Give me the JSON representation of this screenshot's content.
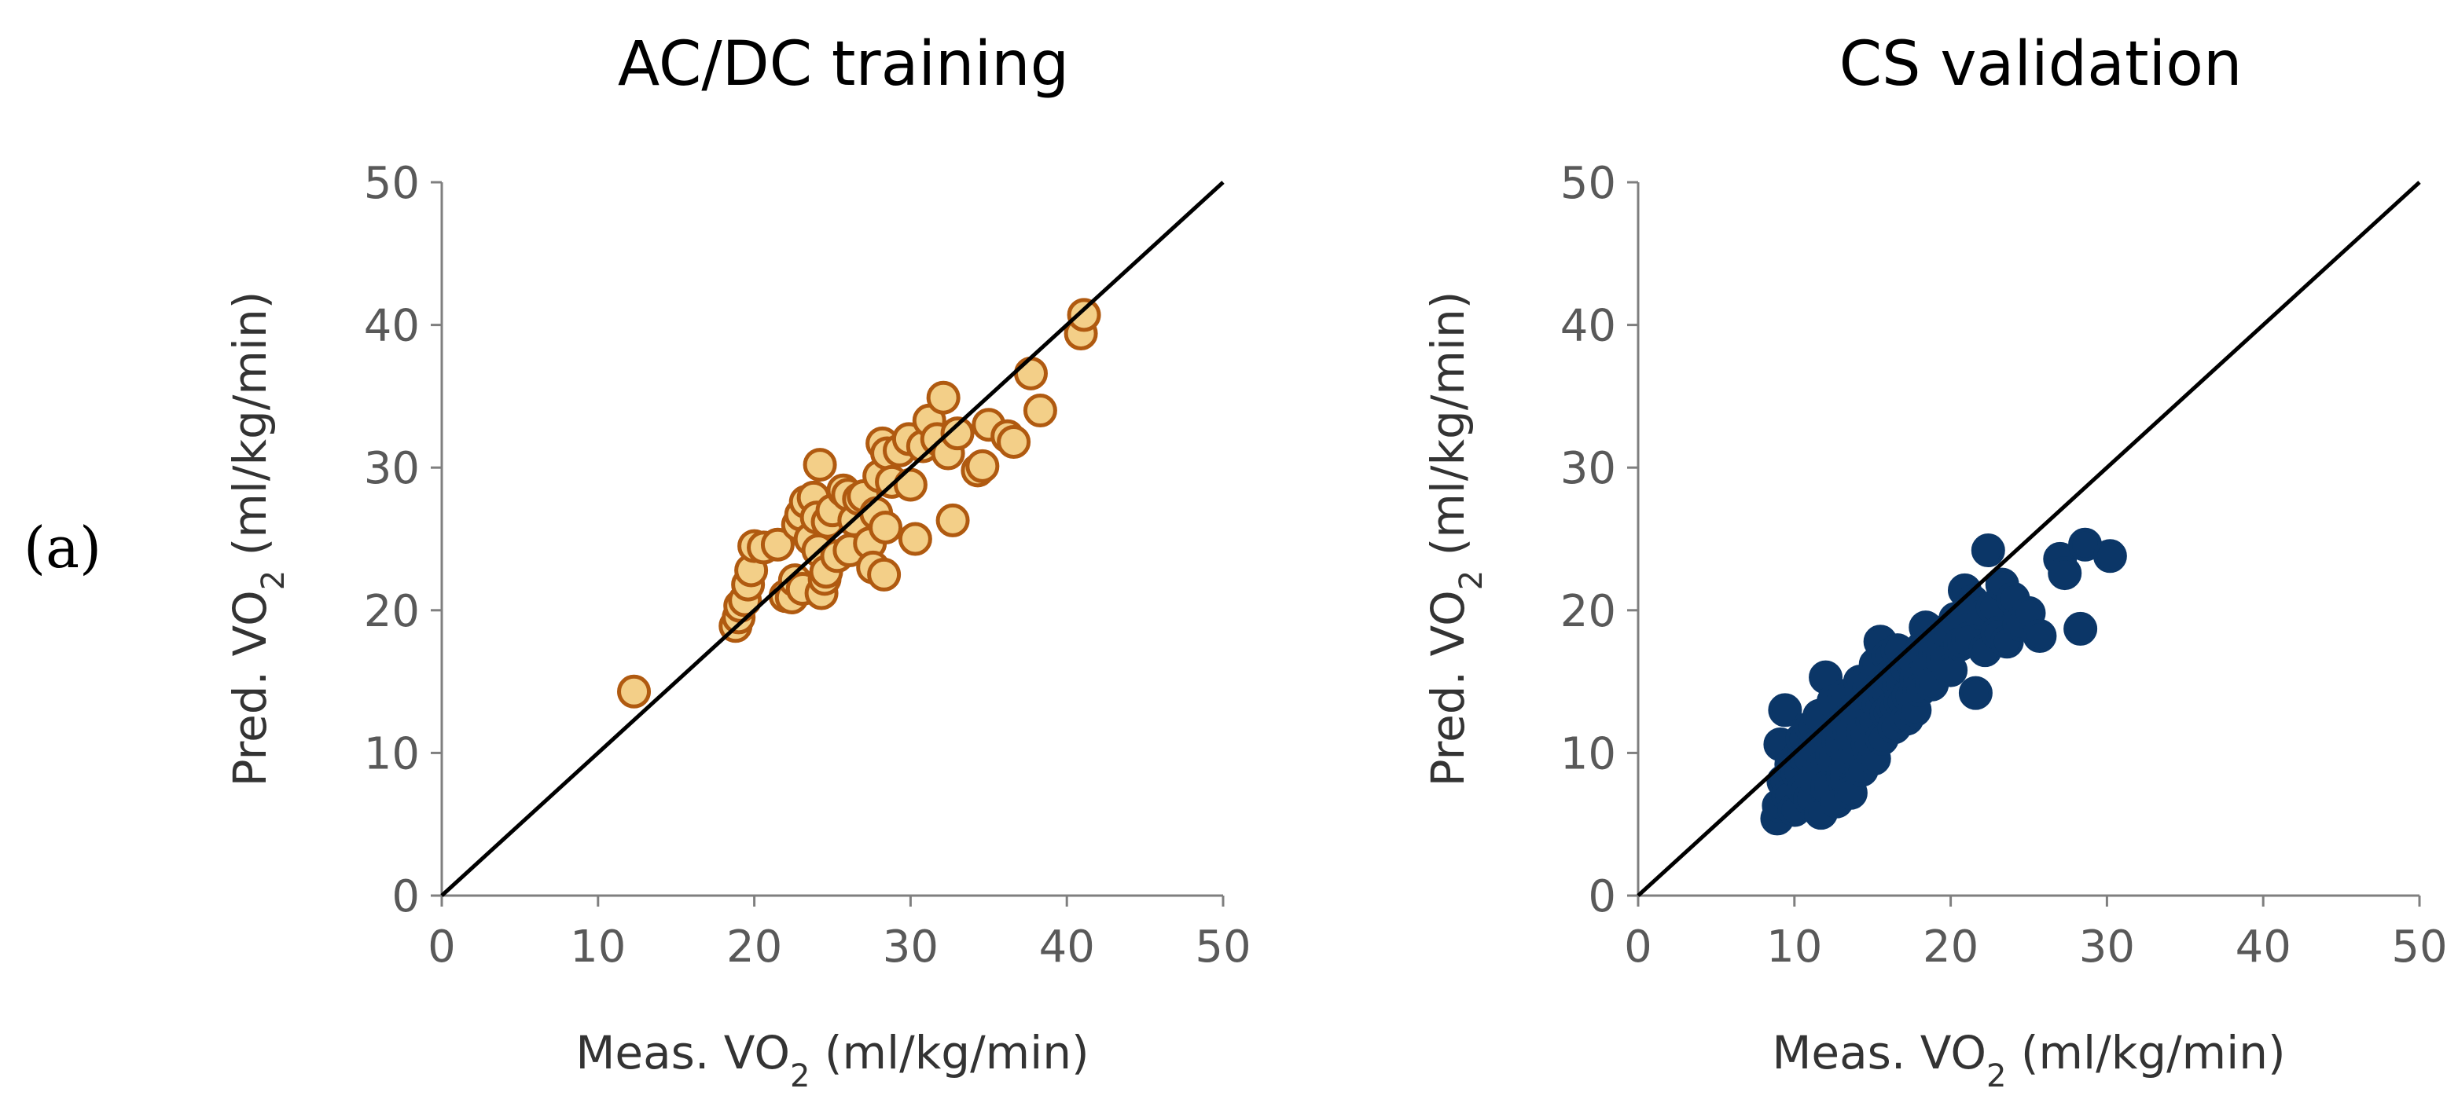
{
  "panel_label": "(a)",
  "chart_data": [
    {
      "type": "scatter",
      "title": "AC/DC training",
      "xlabel": {
        "main": "Meas. VO",
        "sub": "2",
        "unit": " (ml/kg/min)"
      },
      "ylabel": {
        "main": "Pred. VO",
        "sub": "2",
        "unit": " (ml/kg/min)"
      },
      "xlim": [
        0,
        50
      ],
      "ylim": [
        0,
        50
      ],
      "xticks": [
        0,
        10,
        20,
        30,
        40,
        50
      ],
      "yticks": [
        0,
        10,
        20,
        30,
        40,
        50
      ],
      "identity_line": true,
      "marker": {
        "fill": "#F3CF88",
        "stroke": "#B05A10"
      },
      "points": [
        [
          12.3,
          14.3
        ],
        [
          18.8,
          18.9
        ],
        [
          19.0,
          19.5
        ],
        [
          19.1,
          20.3
        ],
        [
          19.4,
          20.7
        ],
        [
          19.6,
          21.8
        ],
        [
          19.8,
          22.8
        ],
        [
          20.0,
          24.5
        ],
        [
          20.6,
          24.4
        ],
        [
          21.5,
          24.6
        ],
        [
          22.0,
          21.0
        ],
        [
          22.4,
          20.9
        ],
        [
          22.6,
          22.1
        ],
        [
          22.8,
          26.0
        ],
        [
          23.0,
          26.7
        ],
        [
          23.1,
          21.5
        ],
        [
          23.3,
          27.6
        ],
        [
          23.6,
          25.0
        ],
        [
          23.8,
          27.9
        ],
        [
          24.0,
          26.5
        ],
        [
          24.1,
          24.2
        ],
        [
          24.2,
          30.2
        ],
        [
          24.3,
          21.2
        ],
        [
          24.5,
          22.2
        ],
        [
          24.6,
          22.7
        ],
        [
          24.7,
          26.2
        ],
        [
          25.0,
          27.0
        ],
        [
          25.3,
          23.8
        ],
        [
          25.7,
          28.4
        ],
        [
          26.0,
          28.1
        ],
        [
          26.1,
          24.2
        ],
        [
          26.4,
          26.3
        ],
        [
          26.7,
          27.8
        ],
        [
          27.0,
          28.0
        ],
        [
          27.4,
          24.7
        ],
        [
          27.6,
          23.0
        ],
        [
          27.8,
          26.8
        ],
        [
          28.0,
          29.4
        ],
        [
          28.2,
          31.7
        ],
        [
          28.3,
          22.5
        ],
        [
          28.4,
          25.8
        ],
        [
          28.5,
          31.0
        ],
        [
          28.8,
          29.0
        ],
        [
          29.3,
          31.2
        ],
        [
          29.9,
          32.0
        ],
        [
          30.0,
          28.8
        ],
        [
          30.3,
          25.0
        ],
        [
          30.8,
          31.5
        ],
        [
          31.2,
          33.3
        ],
        [
          31.7,
          32.0
        ],
        [
          32.1,
          34.9
        ],
        [
          32.4,
          31.0
        ],
        [
          32.7,
          26.3
        ],
        [
          33.0,
          32.4
        ],
        [
          34.3,
          29.8
        ],
        [
          34.6,
          30.1
        ],
        [
          35.0,
          33.0
        ],
        [
          36.2,
          32.2
        ],
        [
          36.6,
          31.8
        ],
        [
          37.7,
          36.6
        ],
        [
          38.3,
          34.0
        ],
        [
          40.9,
          39.4
        ],
        [
          41.1,
          40.7
        ]
      ]
    },
    {
      "type": "scatter",
      "title": "CS validation",
      "xlabel": {
        "main": "Meas. VO",
        "sub": "2",
        "unit": " (ml/kg/min)"
      },
      "ylabel": {
        "main": "Pred. VO",
        "sub": "2",
        "unit": " (ml/kg/min)"
      },
      "xlim": [
        0,
        50
      ],
      "ylim": [
        0,
        50
      ],
      "xticks": [
        0,
        10,
        20,
        30,
        40,
        50
      ],
      "yticks": [
        0,
        10,
        20,
        30,
        40,
        50
      ],
      "identity_line": true,
      "marker": {
        "fill": "#0B3667",
        "stroke": "#0B3667"
      },
      "points": [
        [
          8.9,
          5.4
        ],
        [
          9.0,
          6.3
        ],
        [
          9.1,
          10.6
        ],
        [
          9.3,
          8.0
        ],
        [
          9.4,
          13.0
        ],
        [
          9.6,
          7.0
        ],
        [
          9.8,
          9.2
        ],
        [
          10.0,
          6.0
        ],
        [
          10.2,
          8.6
        ],
        [
          10.4,
          10.0
        ],
        [
          10.5,
          11.0
        ],
        [
          10.6,
          7.4
        ],
        [
          10.8,
          9.6
        ],
        [
          11.0,
          6.8
        ],
        [
          11.1,
          11.8
        ],
        [
          11.3,
          8.2
        ],
        [
          11.4,
          10.4
        ],
        [
          11.6,
          12.6
        ],
        [
          11.7,
          5.8
        ],
        [
          11.8,
          9.0
        ],
        [
          12.0,
          15.3
        ],
        [
          12.1,
          7.6
        ],
        [
          12.2,
          11.2
        ],
        [
          12.4,
          9.8
        ],
        [
          12.5,
          13.6
        ],
        [
          12.7,
          6.6
        ],
        [
          12.8,
          10.8
        ],
        [
          13.0,
          12.0
        ],
        [
          13.1,
          8.4
        ],
        [
          13.2,
          14.0
        ],
        [
          13.4,
          9.4
        ],
        [
          13.5,
          11.6
        ],
        [
          13.6,
          7.2
        ],
        [
          13.8,
          13.0
        ],
        [
          13.9,
          10.2
        ],
        [
          14.0,
          12.6
        ],
        [
          14.2,
          15.0
        ],
        [
          14.3,
          8.8
        ],
        [
          14.4,
          11.4
        ],
        [
          14.6,
          13.8
        ],
        [
          14.7,
          10.6
        ],
        [
          14.8,
          14.6
        ],
        [
          15.0,
          12.2
        ],
        [
          15.1,
          9.6
        ],
        [
          15.2,
          16.2
        ],
        [
          15.4,
          13.4
        ],
        [
          15.5,
          17.8
        ],
        [
          15.6,
          11.0
        ],
        [
          15.8,
          14.2
        ],
        [
          15.9,
          12.8
        ],
        [
          16.0,
          16.8
        ],
        [
          16.2,
          15.4
        ],
        [
          16.3,
          13.2
        ],
        [
          16.4,
          11.8
        ],
        [
          16.6,
          17.2
        ],
        [
          16.7,
          14.8
        ],
        [
          16.8,
          13.6
        ],
        [
          17.0,
          15.8
        ],
        [
          17.2,
          12.4
        ],
        [
          17.3,
          14.0
        ],
        [
          17.5,
          16.4
        ],
        [
          17.7,
          13.0
        ],
        [
          17.8,
          15.2
        ],
        [
          18.0,
          14.4
        ],
        [
          18.2,
          17.4
        ],
        [
          18.4,
          18.8
        ],
        [
          18.6,
          16.0
        ],
        [
          18.8,
          14.8
        ],
        [
          19.0,
          17.0
        ],
        [
          19.3,
          18.2
        ],
        [
          19.5,
          16.6
        ],
        [
          19.8,
          18.6
        ],
        [
          20.0,
          15.8
        ],
        [
          20.3,
          19.4
        ],
        [
          20.6,
          17.6
        ],
        [
          20.9,
          21.4
        ],
        [
          21.1,
          18.0
        ],
        [
          21.4,
          20.6
        ],
        [
          21.6,
          14.2
        ],
        [
          21.9,
          19.8
        ],
        [
          22.2,
          17.2
        ],
        [
          22.4,
          24.2
        ],
        [
          22.7,
          20.2
        ],
        [
          23.0,
          18.4
        ],
        [
          23.3,
          21.8
        ],
        [
          23.6,
          17.8
        ],
        [
          24.0,
          20.8
        ],
        [
          24.4,
          19.0
        ],
        [
          25.0,
          19.8
        ],
        [
          25.7,
          18.2
        ],
        [
          27.0,
          23.6
        ],
        [
          27.3,
          22.6
        ],
        [
          28.3,
          18.7
        ],
        [
          28.6,
          24.6
        ],
        [
          30.2,
          23.8
        ]
      ]
    }
  ]
}
